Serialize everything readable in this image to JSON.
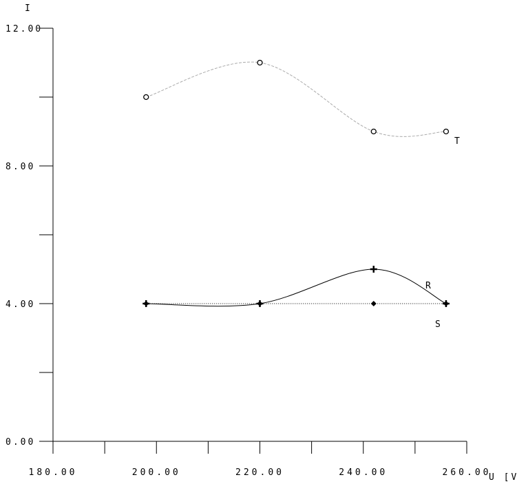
{
  "chart_data": {
    "type": "line",
    "title": "",
    "xlabel": "U [V]",
    "ylabel": "I",
    "xlim": [
      180,
      260
    ],
    "ylim": [
      0,
      12
    ],
    "x_tick_labels": [
      "180.00",
      "200.00",
      "220.00",
      "240.00",
      "260.00"
    ],
    "y_tick_labels": [
      "0.00",
      "4.00",
      "8.00",
      "12.00"
    ],
    "grid": false,
    "series": [
      {
        "name": "T",
        "x": [
          198,
          220,
          242,
          256
        ],
        "y": [
          10,
          11,
          9,
          9
        ],
        "marker": "circle",
        "line": "dashed",
        "color": "#aaaaaa",
        "smooth": true
      },
      {
        "name": "R",
        "x": [
          198,
          220,
          242,
          256
        ],
        "y": [
          4,
          4,
          5,
          4
        ],
        "marker": "plus",
        "line": "solid",
        "color": "#000000",
        "smooth": true
      },
      {
        "name": "S",
        "x": [
          198,
          220,
          242,
          256
        ],
        "y": [
          4,
          4,
          4,
          4
        ],
        "marker": "diamond",
        "line": "dotted",
        "color": "#000000",
        "smooth": false
      }
    ]
  }
}
